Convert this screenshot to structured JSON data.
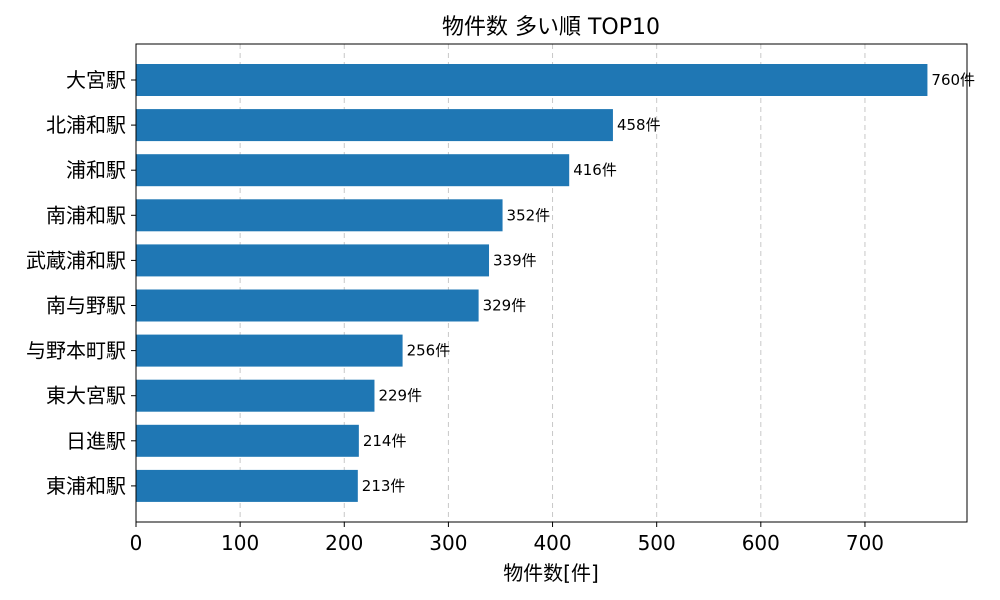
{
  "chart_data": {
    "type": "bar",
    "orientation": "horizontal",
    "title": "物件数 多い順 TOP10",
    "xlabel": "物件数[件]",
    "ylabel": "",
    "xlim": [
      0,
      798
    ],
    "xticks": [
      0,
      100,
      200,
      300,
      400,
      500,
      600,
      700
    ],
    "grid": "x-dashed",
    "value_suffix": "件",
    "categories": [
      "大宮駅",
      "北浦和駅",
      "浦和駅",
      "南浦和駅",
      "武蔵浦和駅",
      "南与野駅",
      "与野本町駅",
      "東大宮駅",
      "日進駅",
      "東浦和駅"
    ],
    "values": [
      760,
      458,
      416,
      352,
      339,
      329,
      256,
      229,
      214,
      213
    ],
    "bar_color": "#1f77b4"
  }
}
